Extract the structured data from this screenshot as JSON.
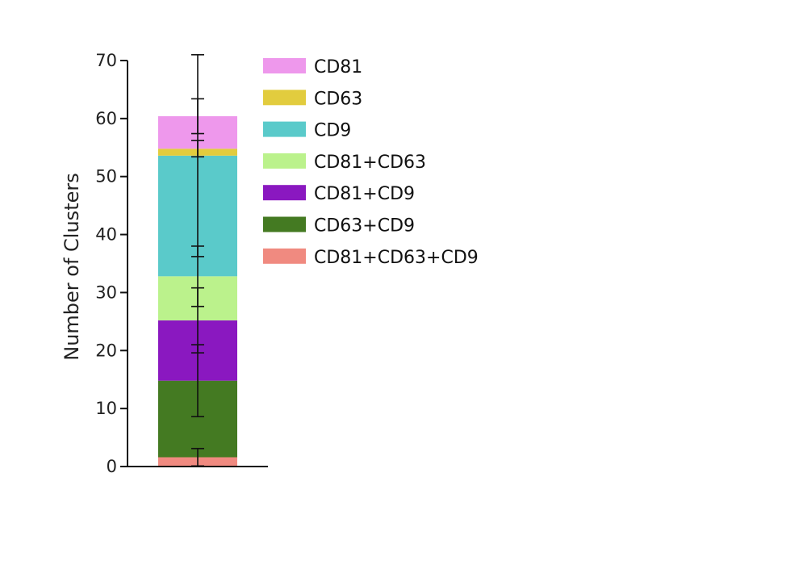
{
  "chart_data": {
    "type": "bar",
    "stacked": true,
    "categories": [
      ""
    ],
    "ylabel": "Number of Clusters",
    "xlabel": "",
    "ylim": [
      0,
      70
    ],
    "yticks": [
      0,
      10,
      20,
      30,
      40,
      50,
      60,
      70
    ],
    "grid": false,
    "legend_position": "right",
    "series": [
      {
        "name": "CD81+CD63+CD9",
        "values": [
          1.6
        ],
        "error": [
          1.5
        ],
        "color": "#f08a80"
      },
      {
        "name": "CD63+CD9",
        "values": [
          13.2
        ],
        "error": [
          6.2
        ],
        "color": "#447a22"
      },
      {
        "name": "CD81+CD9",
        "values": [
          10.4
        ],
        "error": [
          5.6
        ],
        "color": "#8a18c0"
      },
      {
        "name": "CD81+CD63",
        "values": [
          7.6
        ],
        "error": [
          5.2
        ],
        "color": "#bbf28c"
      },
      {
        "name": "CD9",
        "values": [
          20.8
        ],
        "error": [
          17.4
        ],
        "color": "#5acaca"
      },
      {
        "name": "CD63",
        "values": [
          1.2
        ],
        "error": [
          1.4
        ],
        "color": "#e2cc3e"
      },
      {
        "name": "CD81",
        "values": [
          5.6
        ],
        "error": [
          3.0
        ],
        "color": "#ee98ec"
      }
    ]
  },
  "legend_order": [
    "CD81",
    "CD63",
    "CD9",
    "CD81+CD63",
    "CD81+CD9",
    "CD63+CD9",
    "CD81+CD63+CD9"
  ]
}
